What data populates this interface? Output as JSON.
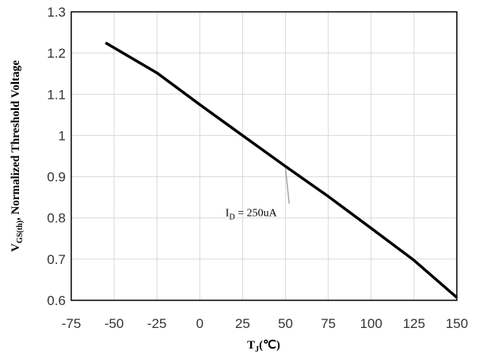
{
  "chart_data": {
    "type": "line",
    "title": "",
    "xlabel": {
      "main": "T",
      "sub": "J",
      "suffix": "(℃)"
    },
    "ylabel": {
      "main": "V",
      "sub": "GS(th)",
      "suffix": ", Normalized Threshold Voltage"
    },
    "xlim": [
      -75,
      150
    ],
    "ylim": [
      0.6,
      1.3
    ],
    "xticks": [
      -75,
      -50,
      -25,
      0,
      25,
      50,
      75,
      100,
      125,
      150
    ],
    "xtick_labels": [
      "-75",
      "-50",
      "-25",
      "0",
      "25",
      "50",
      "75",
      "100",
      "125",
      "150"
    ],
    "yticks": [
      0.6,
      0.7,
      0.8,
      0.9,
      1.0,
      1.1,
      1.2,
      1.3
    ],
    "ytick_labels": [
      "0.6",
      "0.7",
      "0.8",
      "0.9",
      "1",
      "1.1",
      "1.2",
      "1.3"
    ],
    "grid": true,
    "series": [
      {
        "x": [
          -55,
          -25,
          0,
          25,
          50,
          75,
          100,
          125,
          150
        ],
        "y": [
          1.225,
          1.152,
          1.075,
          1.0,
          0.925,
          0.852,
          0.775,
          0.697,
          0.607
        ]
      }
    ],
    "annotations": [
      {
        "text_main": "I",
        "text_sub": "D",
        "text_rest": " = 250uA",
        "point": [
          50,
          0.925
        ],
        "label_at": [
          30,
          0.8
        ]
      }
    ],
    "colors": {
      "line": "#000000",
      "grid": "#d9d9d9",
      "frame": "#000000",
      "leader": "#a6a6a6"
    }
  }
}
